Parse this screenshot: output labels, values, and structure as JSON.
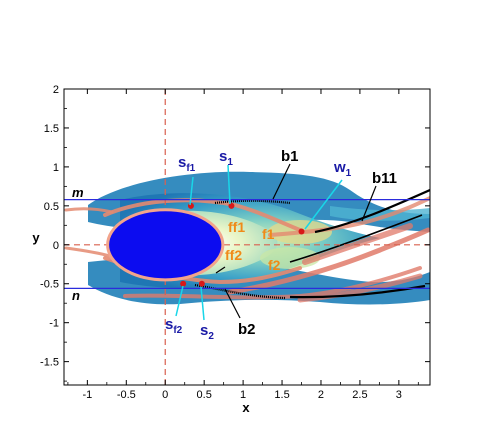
{
  "chart_data": {
    "type": "contour",
    "xlabel": "x",
    "ylabel": "y",
    "xlim": [
      -1.3,
      3.4
    ],
    "ylim": [
      -1.8,
      2.0
    ],
    "xticks": [
      "-1",
      "-0.5",
      "0",
      "0.5",
      "1",
      "1.5",
      "2",
      "2.5",
      "3"
    ],
    "xtick_values": [
      -1,
      -0.5,
      0,
      0.5,
      1,
      1.5,
      2,
      2.5,
      3
    ],
    "yticks": [
      "-1.5",
      "-1",
      "-0.5",
      "0",
      "0.5",
      "1",
      "1.5",
      "2"
    ],
    "ytick_values": [
      -1.5,
      -1,
      -0.5,
      0,
      0.5,
      1,
      1.5,
      2
    ],
    "grid": false,
    "reference_lines": {
      "m": {
        "label": "m",
        "y": 0.58,
        "color": "#2b2bdc"
      },
      "n": {
        "label": "n",
        "y": -0.56,
        "color": "#2b2bdc"
      },
      "vertical": {
        "x": 0,
        "color": "#d9604f"
      },
      "horizontal": {
        "y": 0,
        "color": "#d9604f"
      }
    },
    "body": {
      "cx": 0.0,
      "cy": 0.0,
      "rx": 0.74,
      "ry": 0.45,
      "color": "#0c0cf0"
    },
    "points": [
      {
        "label": "s",
        "sub": "f1",
        "x": 0.33,
        "y": 0.5
      },
      {
        "label": "s",
        "sub": "1",
        "x": 0.85,
        "y": 0.5
      },
      {
        "label": "w",
        "sub": "1",
        "x": 1.75,
        "y": 0.17
      },
      {
        "label": "s",
        "sub": "f2",
        "x": 0.23,
        "y": -0.5
      },
      {
        "label": "s",
        "sub": "2",
        "x": 0.47,
        "y": -0.5
      }
    ],
    "annotations": [
      {
        "text": "b1",
        "x": 1.38,
        "y": 0.51
      },
      {
        "text": "b11",
        "x": 2.45,
        "y": 0.25
      },
      {
        "text": "b2",
        "x": 0.72,
        "y": -0.53
      }
    ],
    "region_labels": [
      "ff1",
      "f1",
      "ff2",
      "f2"
    ],
    "colors": {
      "contour_dark": "#1c6ea8",
      "contour_mid": "#3aa6cc",
      "contour_light": "#b8e4c0",
      "ribbon": "#e2846a",
      "accent_red": "#d81818",
      "cyan": "#19d6e8"
    }
  }
}
